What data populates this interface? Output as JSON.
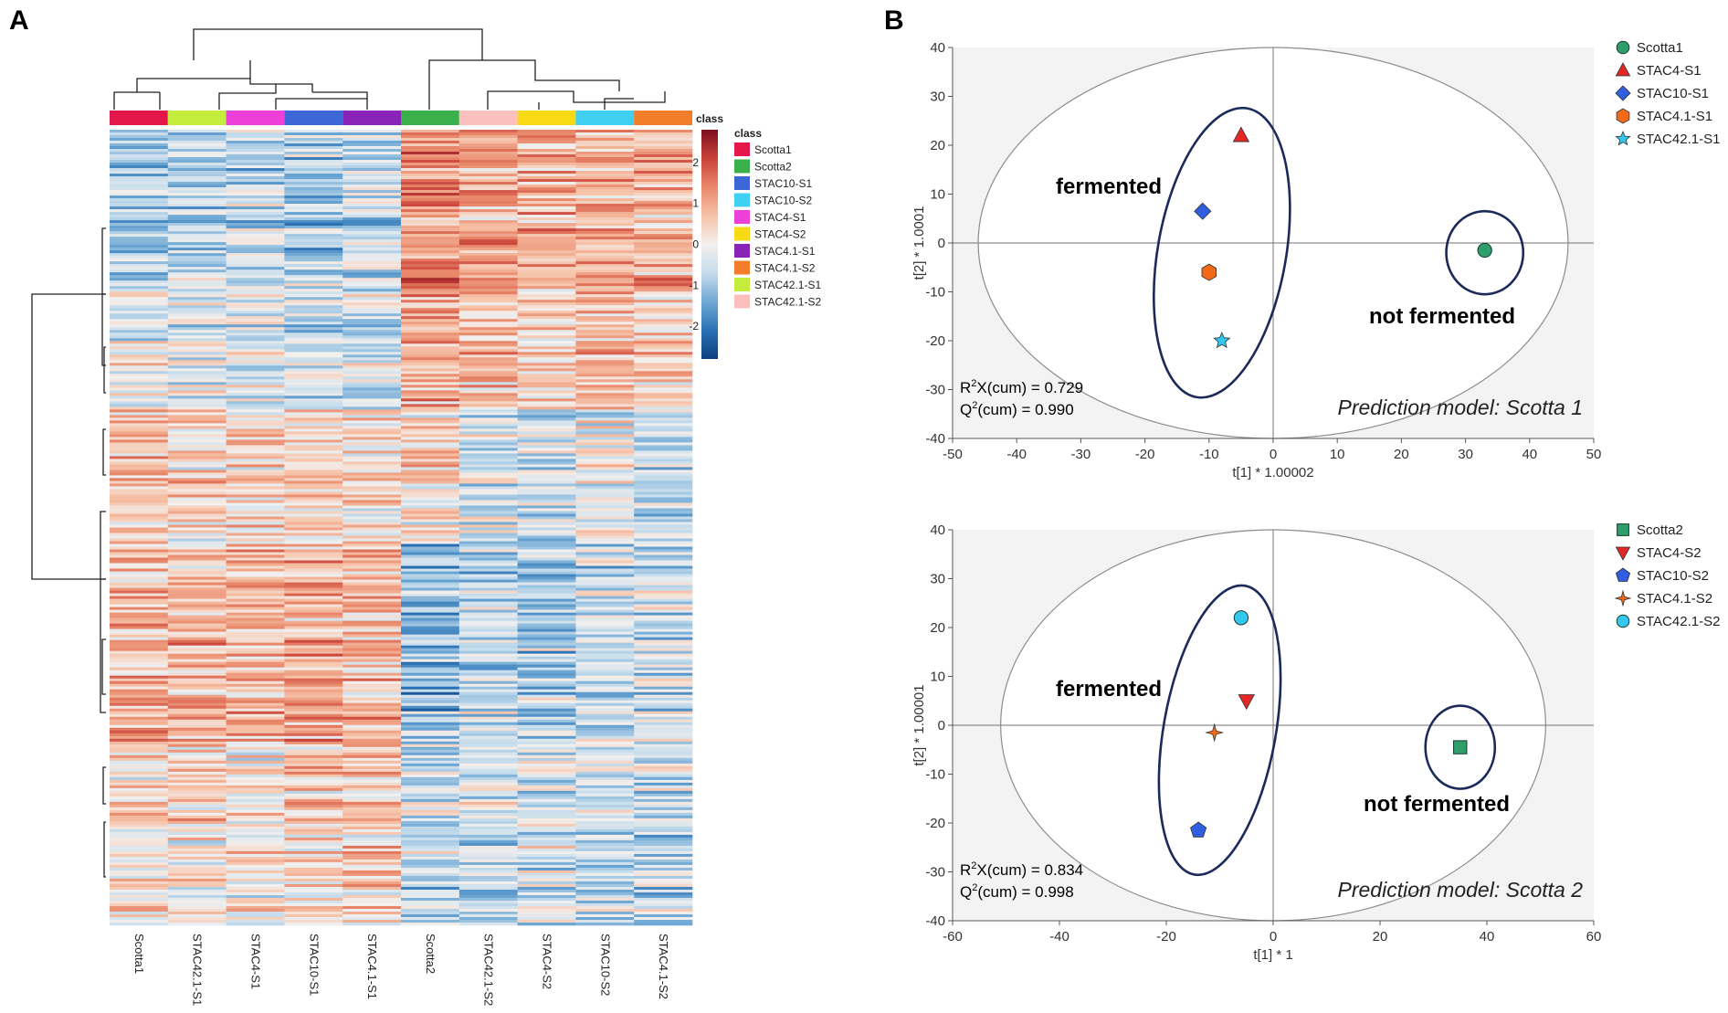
{
  "panels": {
    "a_label": "A",
    "b_label": "B"
  },
  "heatmap": {
    "columns": [
      "Scotta1",
      "STAC42.1-S1",
      "STAC4-S1",
      "STAC10-S1",
      "STAC4.1-S1",
      "Scotta2",
      "STAC42.1-S2",
      "STAC4-S2",
      "STAC10-S2",
      "STAC4.1-S2"
    ],
    "column_classes": [
      "Scotta1",
      "STAC42.1-S1",
      "STAC4-S1",
      "STAC10-S1",
      "STAC4.1-S1",
      "Scotta2",
      "STAC42.1-S2",
      "STAC4-S2",
      "STAC10-S2",
      "STAC4.1-S2"
    ],
    "class_bar_label": "class",
    "legend_title": "class",
    "legend": [
      {
        "name": "Scotta1",
        "color": "#e3174a"
      },
      {
        "name": "Scotta2",
        "color": "#3ab04a"
      },
      {
        "name": "STAC10-S1",
        "color": "#3d67d6"
      },
      {
        "name": "STAC10-S2",
        "color": "#3fd0f2"
      },
      {
        "name": "STAC4-S1",
        "color": "#ec40d8"
      },
      {
        "name": "STAC4-S2",
        "color": "#f7da14"
      },
      {
        "name": "STAC4.1-S1",
        "color": "#8a23b8"
      },
      {
        "name": "STAC4.1-S2",
        "color": "#f27d2a"
      },
      {
        "name": "STAC42.1-S1",
        "color": "#c3ec3d"
      },
      {
        "name": "STAC42.1-S2",
        "color": "#fbbfbd"
      }
    ],
    "colorscale": {
      "ticks": [
        "2",
        "1",
        "0",
        "-1",
        "-2"
      ],
      "tick_values": [
        2,
        1,
        0,
        -1,
        -2
      ],
      "range": [
        -2.8,
        2.8
      ],
      "stops": [
        "#0b3f7f",
        "#2a72b5",
        "#6fa8d4",
        "#c5dcec",
        "#f3f0ee",
        "#f6c2a8",
        "#e9876a",
        "#c9423a",
        "#7c0e1e"
      ]
    },
    "blocks": [
      {
        "frac": 0.2,
        "means": [
          -1.0,
          -0.8,
          -0.7,
          -0.8,
          -0.7,
          1.3,
          0.9,
          0.9,
          0.9,
          0.8
        ]
      },
      {
        "frac": 0.15,
        "means": [
          -0.2,
          -0.3,
          -0.3,
          -0.6,
          -0.5,
          0.9,
          0.6,
          0.4,
          0.6,
          0.4
        ]
      },
      {
        "frac": 0.17,
        "means": [
          0.6,
          0.3,
          0.3,
          0.4,
          0.3,
          0.2,
          -0.4,
          -0.5,
          -0.2,
          -0.6
        ]
      },
      {
        "frac": 0.25,
        "means": [
          0.8,
          0.8,
          0.8,
          0.8,
          0.7,
          -1.1,
          -0.7,
          -0.8,
          -0.6,
          -0.5
        ]
      },
      {
        "frac": 0.23,
        "means": [
          0.2,
          0.3,
          0.1,
          0.4,
          0.4,
          -0.6,
          -0.4,
          -0.3,
          -0.5,
          -0.6
        ]
      }
    ]
  },
  "chart_data": [
    {
      "type": "scatter",
      "title": "Prediction model: Scotta 1",
      "xlabel": "t[1] * 1.00002",
      "ylabel": "t[2] * 1.0001",
      "xlim": [
        -50,
        50
      ],
      "ylim": [
        -40,
        40
      ],
      "xticks": [
        "-50",
        "-40",
        "-30",
        "-20",
        "-10",
        "0",
        "10",
        "20",
        "30",
        "40",
        "50"
      ],
      "yticks": [
        "40",
        "30",
        "20",
        "10",
        "0",
        "-10",
        "-20",
        "-30",
        "-40"
      ],
      "points": [
        {
          "name": "Scotta1",
          "x": 33,
          "y": -1.5,
          "shape": "circle",
          "color": "#2e9e6a"
        },
        {
          "name": "STAC4-S1",
          "x": -5,
          "y": 22,
          "shape": "triangle",
          "color": "#e32626"
        },
        {
          "name": "STAC10-S1",
          "x": -11,
          "y": 6.5,
          "shape": "diamond",
          "color": "#2f5fe0"
        },
        {
          "name": "STAC4.1-S1",
          "x": -10,
          "y": -6,
          "shape": "hexagon",
          "color": "#f06a1a"
        },
        {
          "name": "STAC42.1-S1",
          "x": -8,
          "y": -20,
          "shape": "star",
          "color": "#33c8f0"
        }
      ],
      "ellipse": {
        "cx": 0,
        "cy": 0,
        "rx": 46,
        "ry": 40
      },
      "groups": [
        {
          "label": "fermented",
          "cx": -8,
          "cy": -2,
          "rx": 10,
          "ry": 30,
          "angle_deg": 10
        },
        {
          "label": "not fermented",
          "cx": 33,
          "cy": -2,
          "rx": 6,
          "ry": 8.5,
          "angle_deg": 0
        }
      ],
      "stats": {
        "r2x_prefix": "R",
        "r2x_sup": "2",
        "r2x_rest": "X(cum) = 0.729",
        "q2_prefix": "Q",
        "q2_sup": "2",
        "q2_rest": "(cum) = 0.990"
      }
    },
    {
      "type": "scatter",
      "title": "Prediction model: Scotta 2",
      "xlabel": "t[1] * 1",
      "ylabel": "t[2] * 1.00001",
      "xlim": [
        -60,
        60
      ],
      "ylim": [
        -40,
        40
      ],
      "xticks": [
        "-60",
        "-40",
        "-20",
        "0",
        "20",
        "40",
        "60"
      ],
      "yticks": [
        "40",
        "30",
        "20",
        "10",
        "0",
        "-10",
        "-20",
        "-30",
        "-40"
      ],
      "points": [
        {
          "name": "Scotta2",
          "x": 35,
          "y": -4.5,
          "shape": "square",
          "color": "#2e9e6a"
        },
        {
          "name": "STAC4-S2",
          "x": -5,
          "y": 5,
          "shape": "triangle-down",
          "color": "#e32626"
        },
        {
          "name": "STAC10-S2",
          "x": -14,
          "y": -21.5,
          "shape": "pentagon",
          "color": "#2f5fe0"
        },
        {
          "name": "STAC4.1-S2",
          "x": -11,
          "y": -1.5,
          "shape": "star4",
          "color": "#f06a1a"
        },
        {
          "name": "STAC42.1-S2",
          "x": -6,
          "y": 22,
          "shape": "circle",
          "color": "#33c8f0"
        }
      ],
      "ellipse": {
        "cx": 0,
        "cy": 0,
        "rx": 51,
        "ry": 40
      },
      "groups": [
        {
          "label": "fermented",
          "cx": -10,
          "cy": -1,
          "rx": 10.5,
          "ry": 30,
          "angle_deg": 10
        },
        {
          "label": "not fermented",
          "cx": 35,
          "cy": -4.5,
          "rx": 6.5,
          "ry": 8.5,
          "angle_deg": 0
        }
      ],
      "stats": {
        "r2x_prefix": "R",
        "r2x_sup": "2",
        "r2x_rest": "X(cum) = 0.834",
        "q2_prefix": "Q",
        "q2_sup": "2",
        "q2_rest": "(cum) = 0.998"
      }
    }
  ]
}
